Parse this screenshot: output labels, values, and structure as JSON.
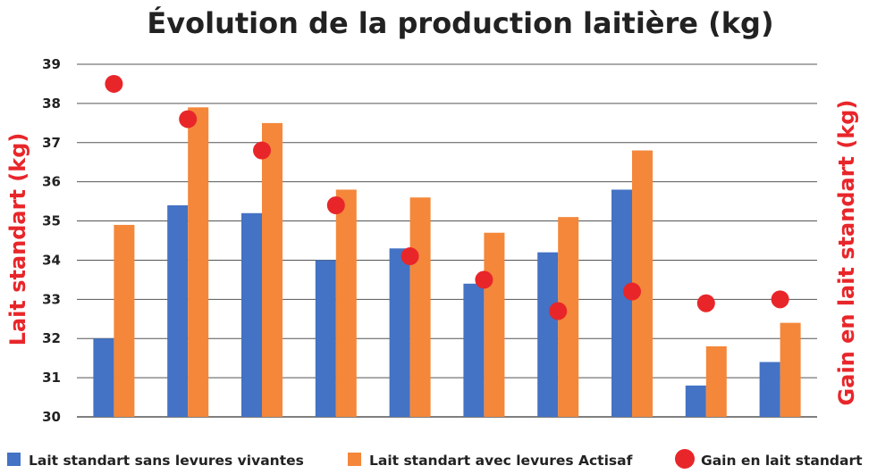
{
  "colors": {
    "series_blue": "#4472c4",
    "series_orange": "#f4873a",
    "gain_red": "#e8262a",
    "axis_label_red": "#e8262a",
    "grid": "#555555",
    "text": "#222222"
  },
  "chart_data": {
    "type": "bar",
    "title": "Évolution de la production laitière (kg)",
    "ylabel_left": "Lait standart (kg)",
    "ylabel_right": "Gain en lait standart (kg)",
    "xlabel": "",
    "ylim": [
      30,
      39
    ],
    "yticks": [
      "30",
      "31",
      "32",
      "33",
      "34",
      "35",
      "36",
      "37",
      "38",
      "39"
    ],
    "grid": true,
    "legend_position": "bottom",
    "categories": [
      "",
      "",
      "",
      "",
      "",
      "",
      "",
      "",
      "",
      ""
    ],
    "series": [
      {
        "name": "Lait standart sans levures vivantes",
        "kind": "bar",
        "color": "#4472c4",
        "values": [
          32.0,
          35.4,
          35.2,
          34.0,
          34.3,
          33.4,
          34.2,
          35.8,
          30.8,
          31.4
        ]
      },
      {
        "name": "Lait standart avec levures Actisaf",
        "kind": "bar",
        "color": "#f4873a",
        "values": [
          34.9,
          37.9,
          37.5,
          35.8,
          35.6,
          34.7,
          35.1,
          36.8,
          31.8,
          32.4
        ]
      },
      {
        "name": "Gain en lait standart",
        "kind": "scatter",
        "color": "#e8262a",
        "values": [
          38.5,
          37.6,
          36.8,
          35.4,
          34.1,
          33.5,
          32.7,
          33.2,
          32.9,
          33.0
        ]
      }
    ]
  }
}
